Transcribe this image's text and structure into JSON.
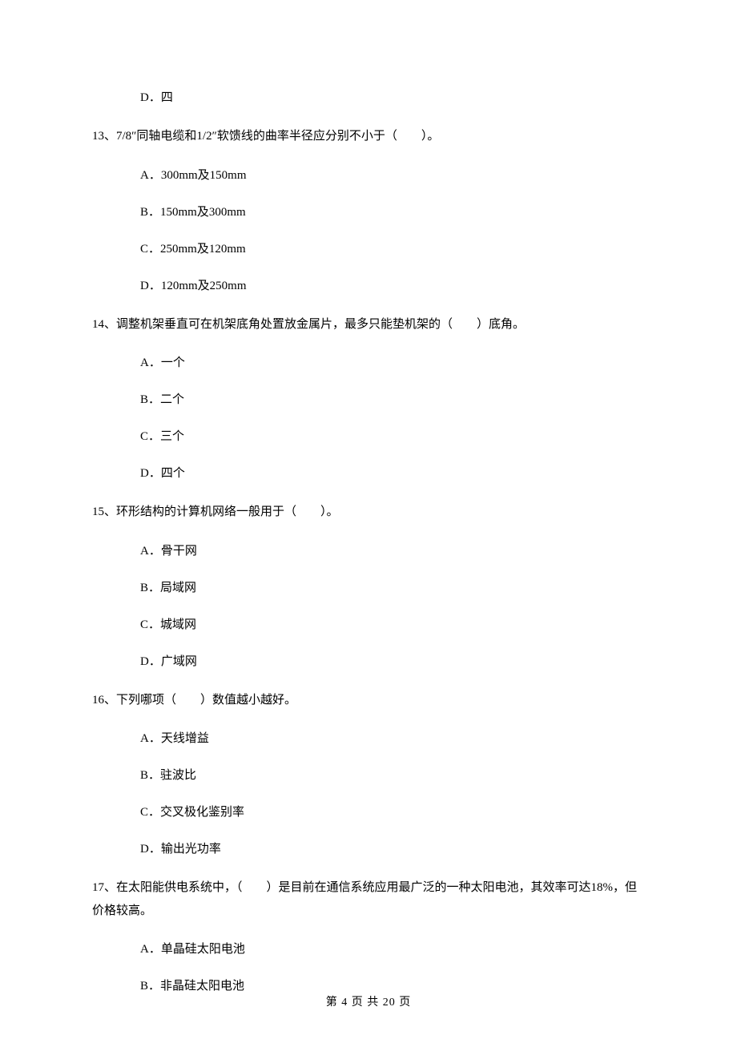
{
  "items": [
    {
      "type": "option",
      "text": "D．四"
    },
    {
      "type": "question",
      "text": "13、7/8″同轴电缆和1/2″软馈线的曲率半径应分别不小于（　　）。"
    },
    {
      "type": "option",
      "text": "A．300mm及150mm"
    },
    {
      "type": "option",
      "text": "B．150mm及300mm"
    },
    {
      "type": "option",
      "text": "C．250mm及120mm"
    },
    {
      "type": "option",
      "text": "D．120mm及250mm"
    },
    {
      "type": "question",
      "text": "14、调整机架垂直可在机架底角处置放金属片，最多只能垫机架的（　　）底角。"
    },
    {
      "type": "option",
      "text": "A．一个"
    },
    {
      "type": "option",
      "text": "B．二个"
    },
    {
      "type": "option",
      "text": "C．三个"
    },
    {
      "type": "option",
      "text": "D．四个"
    },
    {
      "type": "question",
      "text": "15、环形结构的计算机网络一般用于（　　）。"
    },
    {
      "type": "option",
      "text": "A．骨干网"
    },
    {
      "type": "option",
      "text": "B．局域网"
    },
    {
      "type": "option",
      "text": "C．城域网"
    },
    {
      "type": "option",
      "text": "D．广域网"
    },
    {
      "type": "question",
      "text": "16、下列哪项（　　）数值越小越好。"
    },
    {
      "type": "option",
      "text": "A．天线增益"
    },
    {
      "type": "option",
      "text": "B．驻波比"
    },
    {
      "type": "option",
      "text": "C．交叉极化鉴别率"
    },
    {
      "type": "option",
      "text": "D．输出光功率"
    },
    {
      "type": "question",
      "text": "17、在太阳能供电系统中，（　　）是目前在通信系统应用最广泛的一种太阳电池，其效率可达18%，但价格较高。"
    },
    {
      "type": "option",
      "text": "A．单晶硅太阳电池"
    },
    {
      "type": "option",
      "text": "B．非晶硅太阳电池"
    }
  ],
  "footer": "第 4 页 共 20 页"
}
